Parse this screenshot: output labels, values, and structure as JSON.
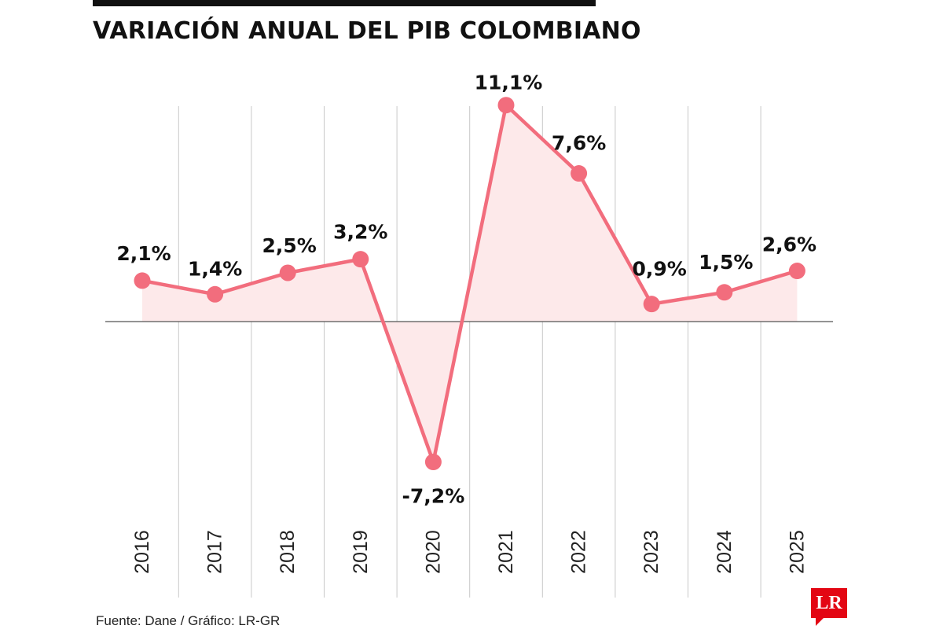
{
  "header": {
    "title": "VARIACIÓN ANUAL DEL PIB COLOMBIANO"
  },
  "footer": {
    "source": "Fuente: Dane / Gráfico: LR-GR",
    "logo_text": "LR"
  },
  "colors": {
    "line": "#f26d7d",
    "fill": "#fde9ea",
    "grid": "#c8c8c8",
    "axis": "#555555",
    "logo": "#e30613"
  },
  "chart_data": {
    "type": "line",
    "title": "VARIACIÓN ANUAL DEL PIB COLOMBIANO",
    "xlabel": "",
    "ylabel": "",
    "categories": [
      "2016",
      "2017",
      "2018",
      "2019",
      "2020",
      "2021",
      "2022",
      "2023",
      "2024",
      "2025"
    ],
    "values": [
      2.1,
      1.4,
      2.5,
      3.2,
      -7.2,
      11.1,
      7.6,
      0.9,
      1.5,
      2.6
    ],
    "value_labels": [
      "2,1%",
      "1,4%",
      "2,5%",
      "3,2%",
      "-7,2%",
      "11,1%",
      "7,6%",
      "0,9%",
      "1,5%",
      "2,6%"
    ],
    "ylim": [
      -7.2,
      11.1
    ],
    "grid": true,
    "legend": "none"
  }
}
